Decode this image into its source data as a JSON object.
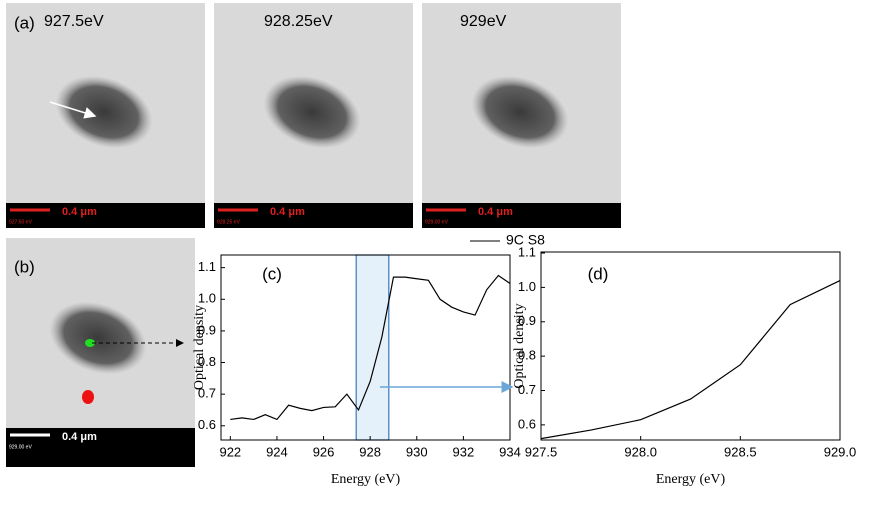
{
  "panels": {
    "a_label": "(a)",
    "b_label": "(b)",
    "images": [
      {
        "energy": "927.5eV",
        "scale": "0.4 μm",
        "stamp": "927.50 eV"
      },
      {
        "energy": "928.25eV",
        "scale": "0.4 μm",
        "stamp": "928.25 eV"
      },
      {
        "energy": "929eV",
        "scale": "0.4 μm",
        "stamp": "929.00 eV"
      }
    ],
    "b_scale": "0.4 μm",
    "b_stamp": "929.00 eV"
  },
  "chart_data": [
    {
      "type": "line",
      "panel_label": "(c)",
      "xlabel": "Energy (eV)",
      "ylabel": "Optical density",
      "x": [
        922,
        922.5,
        923,
        923.5,
        924,
        924.5,
        925,
        925.5,
        926,
        926.5,
        927,
        927.5,
        928,
        928.5,
        929,
        929.5,
        930,
        930.5,
        931,
        931.5,
        932,
        932.5,
        933,
        933.5,
        934
      ],
      "series": [
        {
          "name": "9C S8",
          "color": "#000000",
          "values": [
            0.62,
            0.625,
            0.62,
            0.635,
            0.62,
            0.665,
            0.655,
            0.648,
            0.658,
            0.66,
            0.7,
            0.65,
            0.74,
            0.88,
            1.07,
            1.07,
            1.065,
            1.06,
            1.0,
            0.975,
            0.96,
            0.95,
            1.03,
            1.075,
            1.05
          ]
        }
      ],
      "highlight": [
        927.4,
        928.8
      ],
      "xlim": [
        921.6,
        934
      ],
      "xticks": [
        922,
        924,
        926,
        928,
        930,
        932,
        934
      ],
      "ylim": [
        0.555,
        1.14
      ],
      "yticks": [
        0.6,
        0.7,
        0.8,
        0.9,
        {
          "value": 1,
          "label": "1.0"
        },
        1.1
      ]
    },
    {
      "type": "line",
      "panel_label": "(d)",
      "xlabel": "Energy (eV)",
      "ylabel": "Optical density",
      "x": [
        927.5,
        927.75,
        928,
        928.25,
        928.5,
        928.75,
        929
      ],
      "series": [
        {
          "name": "9C S8",
          "color": "#000000",
          "values": [
            0.56,
            0.585,
            0.615,
            0.675,
            0.775,
            0.95,
            1.02
          ]
        }
      ],
      "xlim": [
        927.5,
        929
      ],
      "xticks": [
        927.5,
        {
          "value": 928,
          "label": "928.0"
        },
        928.5,
        {
          "value": 929,
          "label": "929.0"
        }
      ],
      "ylim": [
        0.556,
        1.103
      ],
      "yticks": [
        0.6,
        0.7,
        0.8,
        0.9,
        {
          "value": 1,
          "label": "1.0"
        },
        1.1
      ]
    }
  ]
}
